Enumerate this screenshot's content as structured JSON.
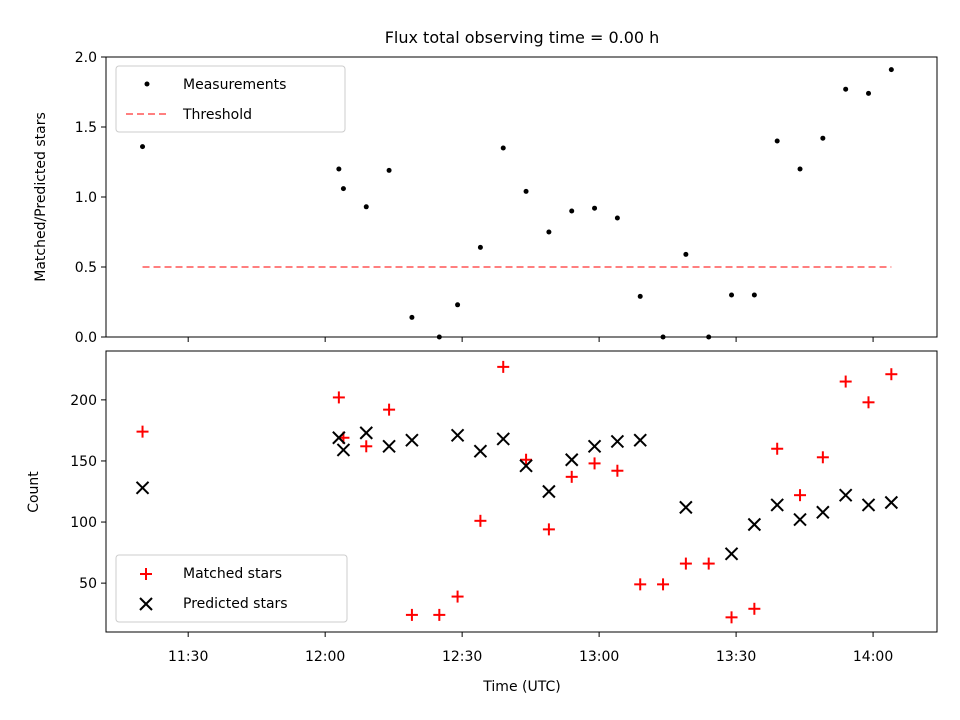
{
  "chart_data": [
    {
      "type": "scatter",
      "title": "Flux total observing time = 0.00 h",
      "xlabel": "",
      "ylabel": "Matched/Predicted stars",
      "ylim": [
        0,
        2
      ],
      "yticks": [
        0.0,
        0.5,
        1.0,
        1.5,
        2.0
      ],
      "ytick_labels": [
        "0.0",
        "0.5",
        "1.0",
        "1.5",
        "2.0"
      ],
      "legend_position": "top-left",
      "series": [
        {
          "name": "Measurements",
          "style": "dot",
          "color": "#000000",
          "x": [
            "11:20",
            "12:03",
            "12:04",
            "12:09",
            "12:14",
            "12:19",
            "12:25",
            "12:29",
            "12:34",
            "12:39",
            "12:44",
            "12:49",
            "12:54",
            "12:59",
            "13:04",
            "13:09",
            "13:14",
            "13:19",
            "13:24",
            "13:29",
            "13:34",
            "13:39",
            "13:44",
            "13:49",
            "13:54",
            "13:59",
            "14:04"
          ],
          "y": [
            1.36,
            1.2,
            1.06,
            0.93,
            1.19,
            0.14,
            0.0,
            0.23,
            0.64,
            1.35,
            1.04,
            0.75,
            0.9,
            0.92,
            0.85,
            0.29,
            0.0,
            0.59,
            0.0,
            0.3,
            0.3,
            1.4,
            1.2,
            1.42,
            1.77,
            1.74,
            1.91
          ]
        },
        {
          "name": "Threshold",
          "style": "dashed-line",
          "color": "#ff7f7f",
          "x": [
            "11:20",
            "14:04"
          ],
          "y": [
            0.5,
            0.5
          ]
        }
      ]
    },
    {
      "type": "scatter",
      "title": "",
      "xlabel": "Time (UTC)",
      "ylabel": "Count",
      "ylim": [
        10,
        240
      ],
      "xlim": [
        "11:12",
        "14:14"
      ],
      "yticks": [
        50,
        100,
        150,
        200
      ],
      "ytick_labels": [
        "50",
        "100",
        "150",
        "200"
      ],
      "xticks": [
        "11:30",
        "12:00",
        "12:30",
        "13:00",
        "13:30",
        "14:00"
      ],
      "xtick_labels": [
        "11:30",
        "12:00",
        "12:30",
        "13:00",
        "13:30",
        "14:00"
      ],
      "legend_position": "bottom-left",
      "series": [
        {
          "name": "Matched stars",
          "style": "plus",
          "color": "#ff0000",
          "x": [
            "11:20",
            "12:03",
            "12:04",
            "12:09",
            "12:14",
            "12:19",
            "12:25",
            "12:29",
            "12:34",
            "12:39",
            "12:44",
            "12:49",
            "12:54",
            "12:59",
            "13:04",
            "13:09",
            "13:14",
            "13:19",
            "13:24",
            "13:29",
            "13:34",
            "13:39",
            "13:44",
            "13:49",
            "13:54",
            "13:59",
            "14:04"
          ],
          "y": [
            174,
            202,
            169,
            162,
            192,
            24,
            24,
            39,
            101,
            227,
            151,
            94,
            137,
            148,
            142,
            49,
            49,
            66,
            66,
            22,
            29,
            160,
            122,
            153,
            215,
            198,
            221
          ]
        },
        {
          "name": "Predicted stars",
          "style": "x",
          "color": "#000000",
          "x": [
            "11:20",
            "12:03",
            "12:04",
            "12:09",
            "12:14",
            "12:19",
            "12:29",
            "12:34",
            "12:39",
            "12:44",
            "12:49",
            "12:54",
            "12:59",
            "13:04",
            "13:09",
            "13:19",
            "13:29",
            "13:34",
            "13:39",
            "13:44",
            "13:49",
            "13:54",
            "13:59",
            "14:04"
          ],
          "y": [
            128,
            169,
            159,
            173,
            162,
            167,
            171,
            158,
            168,
            146,
            125,
            151,
            162,
            166,
            167,
            112,
            74,
            98,
            114,
            102,
            108,
            122,
            114,
            116
          ]
        }
      ]
    }
  ]
}
